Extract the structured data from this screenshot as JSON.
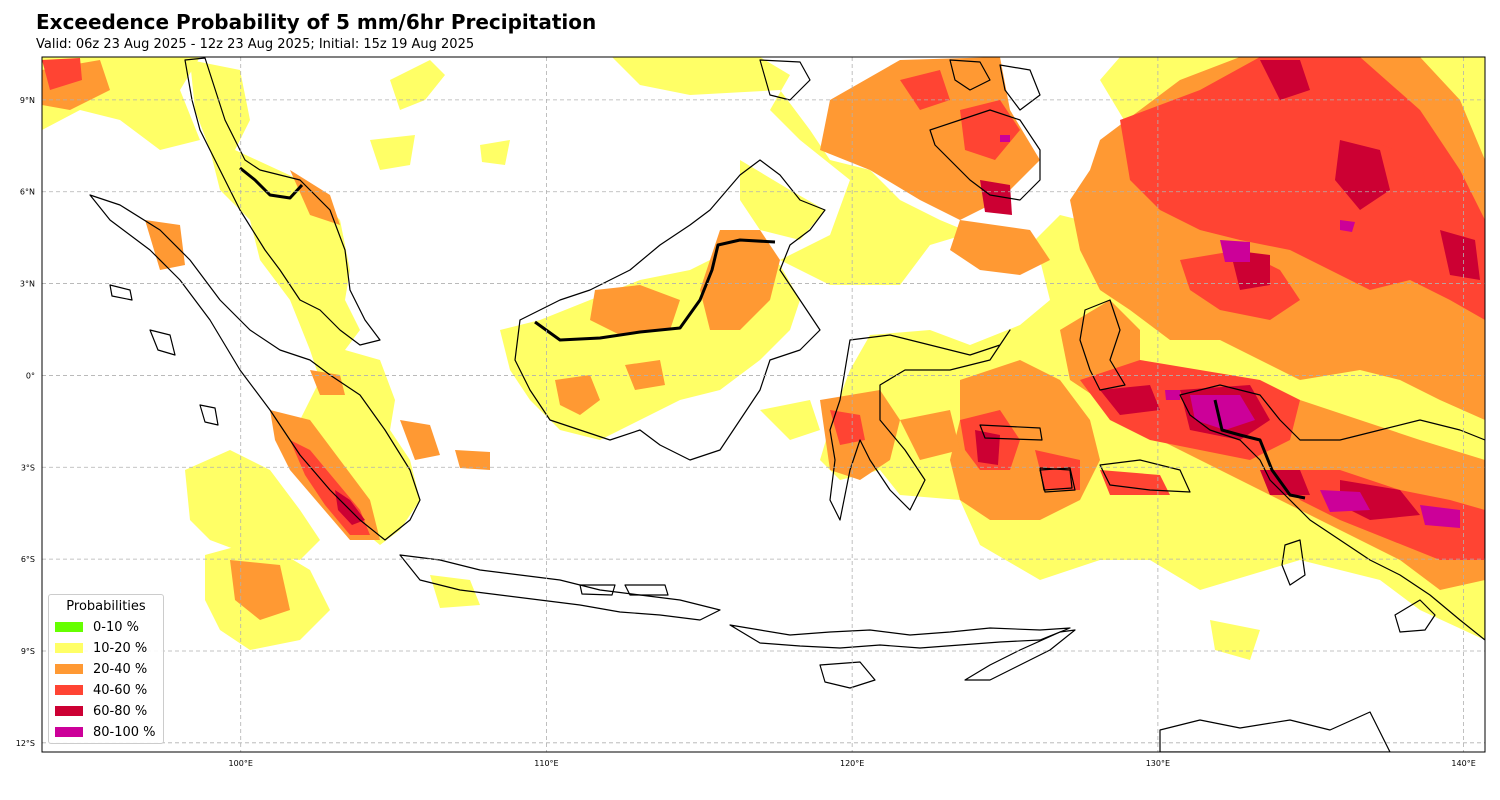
{
  "title": "Exceedence Probability of 5 mm/6hr Precipitation",
  "subtitle": "Valid: 06z 23 Aug 2025 - 12z 23 Aug 2025; Initial: 15z 19 Aug 2025",
  "map": {
    "extent": {
      "lon_min": 93.5,
      "lon_max": 140.7,
      "lat_min": -12.3,
      "lat_max": 10.4
    },
    "lat_ticks": [
      {
        "value": 9,
        "label": "9°N"
      },
      {
        "value": 6,
        "label": "6°N"
      },
      {
        "value": 3,
        "label": "3°N"
      },
      {
        "value": 0,
        "label": "0°"
      },
      {
        "value": -3,
        "label": "3°S"
      },
      {
        "value": -6,
        "label": "6°S"
      },
      {
        "value": -9,
        "label": "9°S"
      },
      {
        "value": -12,
        "label": "12°S"
      }
    ],
    "lon_ticks": [
      {
        "value": 100,
        "label": "100°E"
      },
      {
        "value": 110,
        "label": "110°E"
      },
      {
        "value": 120,
        "label": "120°E"
      },
      {
        "value": 130,
        "label": "130°E"
      },
      {
        "value": 140,
        "label": "140°E"
      }
    ],
    "grid": true,
    "coastline_color": "#000000"
  },
  "legend": {
    "title": "Probabilities",
    "placement": "lower-left",
    "items": [
      {
        "label": "0-10 %",
        "color": "#66ff00"
      },
      {
        "label": "10-20 %",
        "color": "#ffff66"
      },
      {
        "label": "20-40 %",
        "color": "#ff9933"
      },
      {
        "label": "40-60 %",
        "color": "#ff4433"
      },
      {
        "label": "60-80 %",
        "color": "#cc0033"
      },
      {
        "label": "80-100 %",
        "color": "#cc0099"
      }
    ]
  }
}
